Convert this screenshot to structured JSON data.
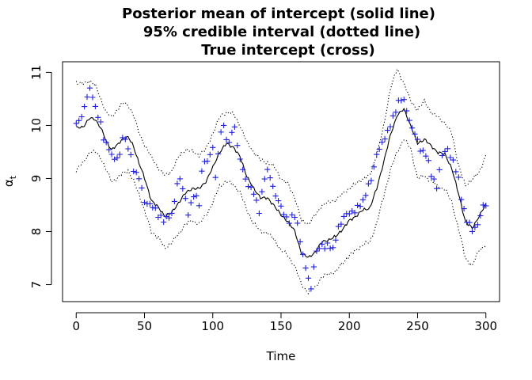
{
  "chart_data": {
    "type": "line",
    "title_lines": [
      "Posterior mean of intercept (solid line)",
      "95% credible interval (dotted line)",
      "True intercept (cross)"
    ],
    "xlabel": "Time",
    "ylabel_main": "α",
    "ylabel_sub": "t",
    "xlim": [
      -10,
      310
    ],
    "ylim": [
      6.68,
      11.2
    ],
    "x_ticks": [
      0,
      50,
      100,
      150,
      200,
      250,
      300
    ],
    "y_ticks": [
      7,
      8,
      9,
      10,
      11
    ],
    "grid": false,
    "colors": {
      "mean": "#000000",
      "interval": "#000000",
      "truth": "#2020dd"
    },
    "anchors": {
      "mean": [
        [
          0,
          9.95
        ],
        [
          5,
          9.98
        ],
        [
          10,
          10.13
        ],
        [
          14,
          10.12
        ],
        [
          18,
          9.95
        ],
        [
          22,
          9.7
        ],
        [
          26,
          9.55
        ],
        [
          30,
          9.62
        ],
        [
          34,
          9.75
        ],
        [
          38,
          9.78
        ],
        [
          42,
          9.6
        ],
        [
          46,
          9.3
        ],
        [
          50,
          9.0
        ],
        [
          55,
          8.6
        ],
        [
          60,
          8.45
        ],
        [
          65,
          8.3
        ],
        [
          70,
          8.35
        ],
        [
          75,
          8.55
        ],
        [
          80,
          8.72
        ],
        [
          85,
          8.82
        ],
        [
          90,
          8.8
        ],
        [
          95,
          8.95
        ],
        [
          100,
          9.2
        ],
        [
          105,
          9.5
        ],
        [
          110,
          9.65
        ],
        [
          115,
          9.6
        ],
        [
          120,
          9.4
        ],
        [
          125,
          9.05
        ],
        [
          130,
          8.8
        ],
        [
          135,
          8.65
        ],
        [
          140,
          8.62
        ],
        [
          145,
          8.5
        ],
        [
          150,
          8.3
        ],
        [
          155,
          8.2
        ],
        [
          160,
          8.0
        ],
        [
          165,
          7.6
        ],
        [
          170,
          7.5
        ],
        [
          175,
          7.62
        ],
        [
          180,
          7.8
        ],
        [
          185,
          7.85
        ],
        [
          190,
          7.9
        ],
        [
          195,
          8.05
        ],
        [
          200,
          8.2
        ],
        [
          205,
          8.3
        ],
        [
          210,
          8.4
        ],
        [
          215,
          8.45
        ],
        [
          220,
          8.8
        ],
        [
          225,
          9.3
        ],
        [
          230,
          9.8
        ],
        [
          235,
          10.2
        ],
        [
          240,
          10.3
        ],
        [
          245,
          10.0
        ],
        [
          250,
          9.65
        ],
        [
          255,
          9.75
        ],
        [
          260,
          9.6
        ],
        [
          265,
          9.5
        ],
        [
          270,
          9.45
        ],
        [
          275,
          9.2
        ],
        [
          280,
          8.7
        ],
        [
          285,
          8.2
        ],
        [
          290,
          8.05
        ],
        [
          295,
          8.3
        ],
        [
          300,
          8.5
        ]
      ],
      "upper": [
        [
          0,
          10.82
        ],
        [
          5,
          10.78
        ],
        [
          10,
          10.85
        ],
        [
          14,
          10.75
        ],
        [
          18,
          10.5
        ],
        [
          22,
          10.25
        ],
        [
          26,
          10.15
        ],
        [
          30,
          10.3
        ],
        [
          34,
          10.42
        ],
        [
          38,
          10.38
        ],
        [
          42,
          10.2
        ],
        [
          46,
          9.85
        ],
        [
          50,
          9.65
        ],
        [
          55,
          9.4
        ],
        [
          60,
          9.2
        ],
        [
          65,
          9.05
        ],
        [
          70,
          9.15
        ],
        [
          75,
          9.4
        ],
        [
          80,
          9.55
        ],
        [
          85,
          9.5
        ],
        [
          90,
          9.45
        ],
        [
          95,
          9.55
        ],
        [
          100,
          9.85
        ],
        [
          105,
          10.15
        ],
        [
          110,
          10.25
        ],
        [
          115,
          10.22
        ],
        [
          120,
          10.0
        ],
        [
          125,
          9.68
        ],
        [
          130,
          9.5
        ],
        [
          135,
          9.35
        ],
        [
          140,
          9.3
        ],
        [
          145,
          9.22
        ],
        [
          150,
          9.0
        ],
        [
          155,
          8.9
        ],
        [
          160,
          8.65
        ],
        [
          165,
          8.2
        ],
        [
          170,
          8.15
        ],
        [
          175,
          8.3
        ],
        [
          180,
          8.5
        ],
        [
          185,
          8.55
        ],
        [
          190,
          8.6
        ],
        [
          195,
          8.7
        ],
        [
          200,
          8.82
        ],
        [
          205,
          8.9
        ],
        [
          210,
          9.0
        ],
        [
          215,
          9.05
        ],
        [
          220,
          9.45
        ],
        [
          225,
          9.95
        ],
        [
          230,
          10.7
        ],
        [
          235,
          11.05
        ],
        [
          240,
          10.8
        ],
        [
          245,
          10.45
        ],
        [
          250,
          10.3
        ],
        [
          255,
          10.45
        ],
        [
          260,
          10.25
        ],
        [
          265,
          10.15
        ],
        [
          270,
          10.05
        ],
        [
          275,
          9.85
        ],
        [
          280,
          9.25
        ],
        [
          285,
          8.85
        ],
        [
          290,
          9.0
        ],
        [
          295,
          9.1
        ],
        [
          300,
          9.45
        ]
      ],
      "lower": [
        [
          0,
          9.15
        ],
        [
          5,
          9.3
        ],
        [
          10,
          9.5
        ],
        [
          14,
          9.5
        ],
        [
          18,
          9.4
        ],
        [
          22,
          9.15
        ],
        [
          26,
          8.95
        ],
        [
          30,
          9.0
        ],
        [
          34,
          9.1
        ],
        [
          38,
          9.15
        ],
        [
          42,
          8.95
        ],
        [
          46,
          8.7
        ],
        [
          50,
          8.4
        ],
        [
          55,
          8.0
        ],
        [
          60,
          7.9
        ],
        [
          65,
          7.68
        ],
        [
          70,
          7.8
        ],
        [
          75,
          7.95
        ],
        [
          80,
          8.15
        ],
        [
          85,
          8.2
        ],
        [
          90,
          8.15
        ],
        [
          95,
          8.3
        ],
        [
          100,
          8.55
        ],
        [
          105,
          8.85
        ],
        [
          110,
          8.95
        ],
        [
          115,
          8.88
        ],
        [
          120,
          8.75
        ],
        [
          125,
          8.4
        ],
        [
          130,
          8.15
        ],
        [
          135,
          8.0
        ],
        [
          140,
          7.98
        ],
        [
          145,
          7.85
        ],
        [
          150,
          7.65
        ],
        [
          155,
          7.55
        ],
        [
          160,
          7.35
        ],
        [
          165,
          7.0
        ],
        [
          170,
          6.85
        ],
        [
          175,
          6.95
        ],
        [
          180,
          7.15
        ],
        [
          185,
          7.2
        ],
        [
          190,
          7.25
        ],
        [
          195,
          7.4
        ],
        [
          200,
          7.55
        ],
        [
          205,
          7.65
        ],
        [
          210,
          7.75
        ],
        [
          215,
          7.8
        ],
        [
          220,
          8.15
        ],
        [
          225,
          8.65
        ],
        [
          230,
          9.15
        ],
        [
          235,
          9.5
        ],
        [
          240,
          9.75
        ],
        [
          245,
          9.55
        ],
        [
          250,
          9.0
        ],
        [
          255,
          9.05
        ],
        [
          260,
          8.95
        ],
        [
          265,
          8.85
        ],
        [
          270,
          8.8
        ],
        [
          275,
          8.55
        ],
        [
          280,
          8.05
        ],
        [
          285,
          7.5
        ],
        [
          290,
          7.35
        ],
        [
          295,
          7.65
        ],
        [
          300,
          7.75
        ]
      ],
      "truth": [
        [
          0,
          10.0
        ],
        [
          5,
          10.25
        ],
        [
          8,
          10.55
        ],
        [
          11,
          10.7
        ],
        [
          14,
          10.35
        ],
        [
          17,
          10.15
        ],
        [
          20,
          9.75
        ],
        [
          24,
          9.6
        ],
        [
          28,
          9.35
        ],
        [
          32,
          9.45
        ],
        [
          34,
          9.85
        ],
        [
          38,
          9.6
        ],
        [
          42,
          9.2
        ],
        [
          46,
          9.05
        ],
        [
          50,
          8.55
        ],
        [
          55,
          8.55
        ],
        [
          60,
          8.3
        ],
        [
          65,
          8.25
        ],
        [
          70,
          8.3
        ],
        [
          73,
          8.75
        ],
        [
          75,
          9.1
        ],
        [
          78,
          8.8
        ],
        [
          82,
          8.35
        ],
        [
          86,
          8.7
        ],
        [
          90,
          8.5
        ],
        [
          93,
          9.4
        ],
        [
          96,
          9.3
        ],
        [
          100,
          9.55
        ],
        [
          102,
          9.0
        ],
        [
          105,
          9.75
        ],
        [
          108,
          10.0
        ],
        [
          110,
          9.65
        ],
        [
          113,
          9.75
        ],
        [
          116,
          10.0
        ],
        [
          118,
          9.55
        ],
        [
          122,
          9.15
        ],
        [
          126,
          8.85
        ],
        [
          130,
          8.7
        ],
        [
          134,
          8.4
        ],
        [
          138,
          9.0
        ],
        [
          141,
          9.15
        ],
        [
          145,
          8.75
        ],
        [
          148,
          8.55
        ],
        [
          152,
          8.35
        ],
        [
          156,
          8.2
        ],
        [
          160,
          8.3
        ],
        [
          163,
          8.05
        ],
        [
          166,
          7.55
        ],
        [
          170,
          7.1
        ],
        [
          172,
          6.95
        ],
        [
          175,
          7.6
        ],
        [
          178,
          7.7
        ],
        [
          182,
          7.75
        ],
        [
          185,
          7.8
        ],
        [
          188,
          7.65
        ],
        [
          192,
          8.1
        ],
        [
          196,
          8.3
        ],
        [
          200,
          8.35
        ],
        [
          205,
          8.45
        ],
        [
          210,
          8.55
        ],
        [
          213,
          8.85
        ],
        [
          217,
          9.05
        ],
        [
          220,
          9.45
        ],
        [
          224,
          9.7
        ],
        [
          228,
          9.85
        ],
        [
          232,
          10.15
        ],
        [
          235,
          10.4
        ],
        [
          239,
          10.5
        ],
        [
          242,
          10.3
        ],
        [
          245,
          10.0
        ],
        [
          249,
          9.75
        ],
        [
          252,
          9.55
        ],
        [
          256,
          9.45
        ],
        [
          260,
          9.05
        ],
        [
          264,
          8.85
        ],
        [
          268,
          9.4
        ],
        [
          272,
          9.55
        ],
        [
          276,
          9.3
        ],
        [
          280,
          8.95
        ],
        [
          283,
          8.5
        ],
        [
          286,
          8.2
        ],
        [
          290,
          8.0
        ],
        [
          294,
          8.15
        ],
        [
          298,
          8.45
        ],
        [
          300,
          8.5
        ]
      ]
    }
  }
}
